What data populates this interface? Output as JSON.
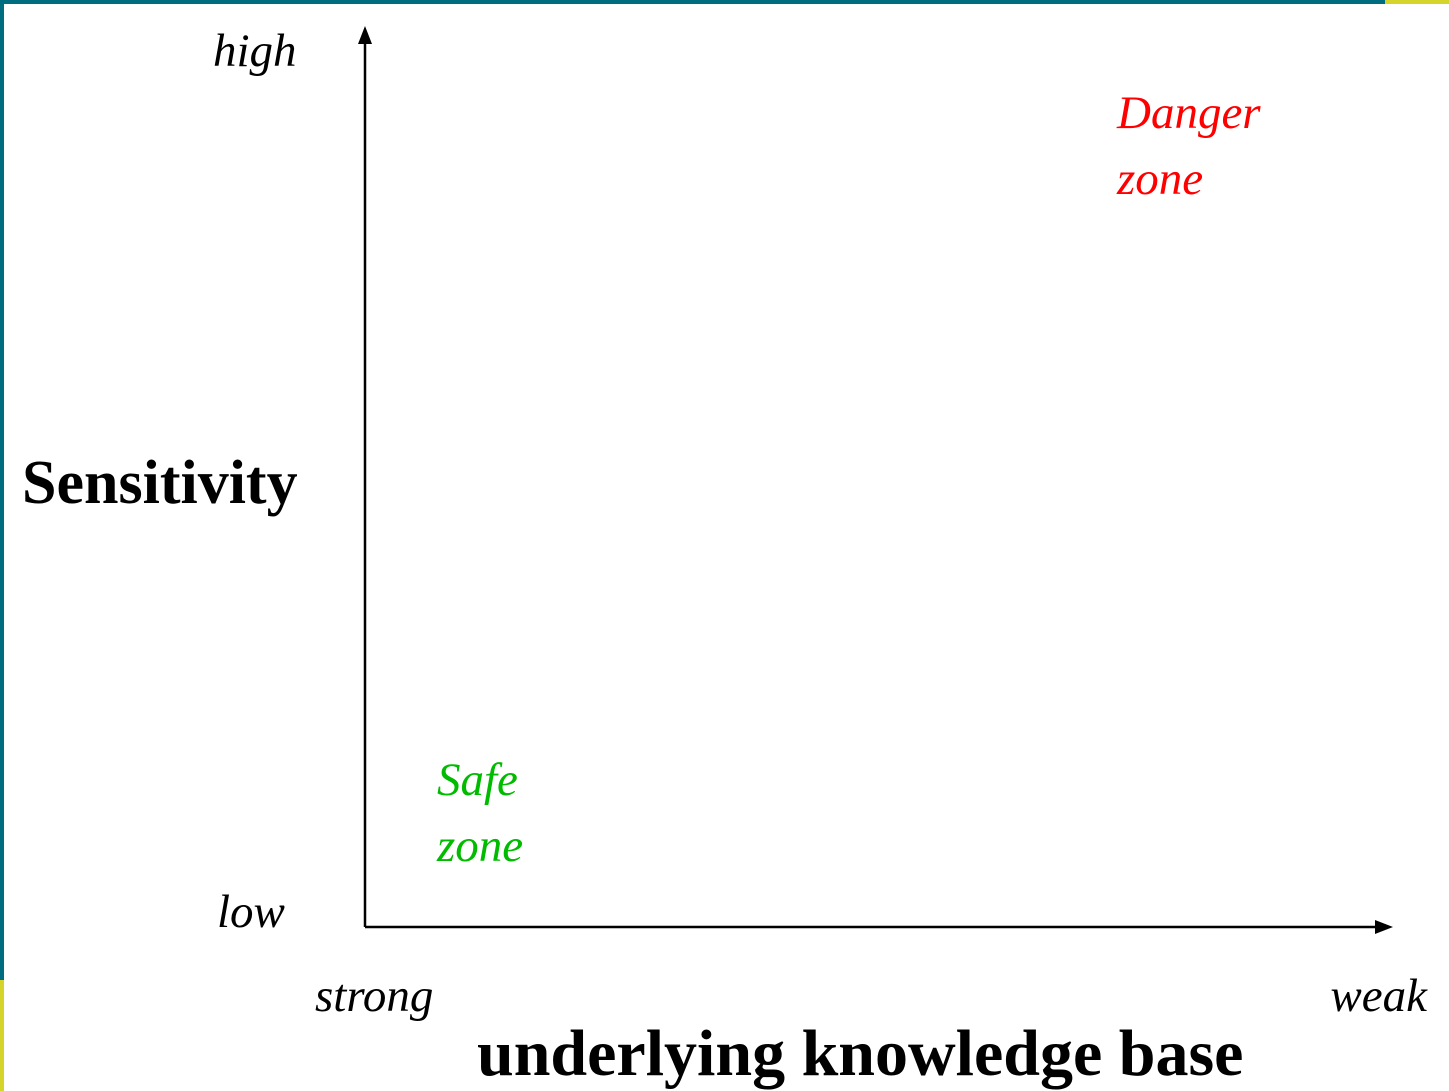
{
  "axes": {
    "y_label": "Sensitivity",
    "y_high": "high",
    "y_low": "low",
    "x_label": "underlying knowledge base",
    "x_left": "strong",
    "x_right": "weak"
  },
  "zones": [
    {
      "lines": [
        "Danger",
        "zone"
      ]
    },
    {
      "lines": [
        "Safe",
        "zone"
      ]
    }
  ]
}
